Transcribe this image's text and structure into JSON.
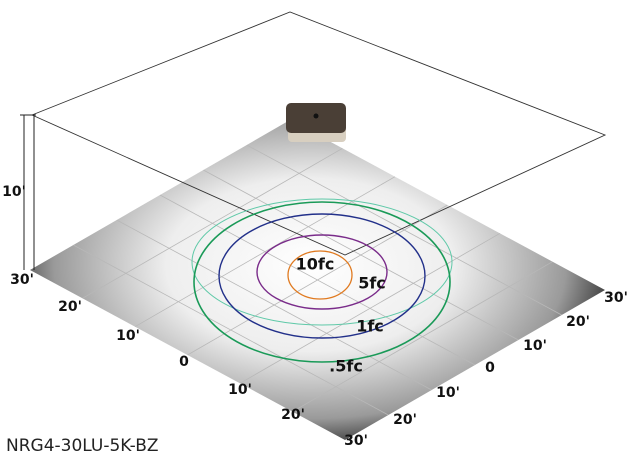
{
  "height_label": "10'",
  "left_axis": [
    "30'",
    "20'",
    "10'",
    "0",
    "10'",
    "20'",
    "30'"
  ],
  "right_axis": [
    "30'",
    "20'",
    "10'",
    "0",
    "10'",
    "20'"
  ],
  "contours": [
    "10fc",
    "5fc",
    "1fc",
    ".5fc"
  ],
  "product": "NRG4-30LU-5K-BZ"
}
